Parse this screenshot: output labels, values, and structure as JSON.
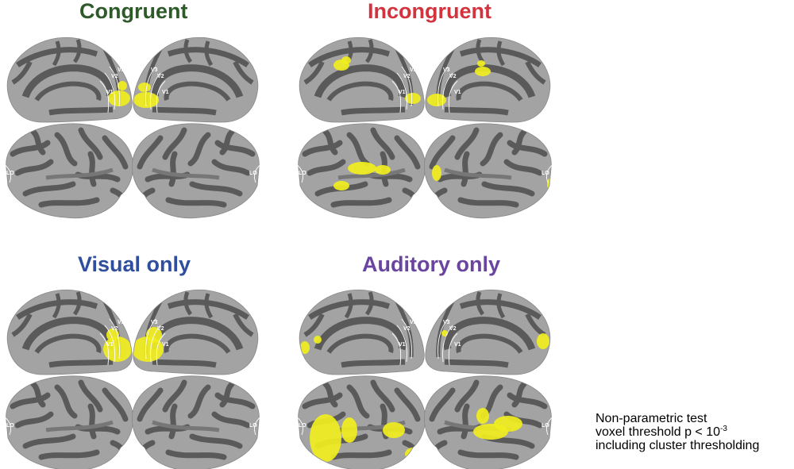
{
  "panels": [
    {
      "title": "Congruent",
      "color": "#2e5a2a"
    },
    {
      "title": "Incongruent",
      "color": "#d2333d"
    },
    {
      "title": "Visual only",
      "color": "#2f4f9e"
    },
    {
      "title": "Auditory only",
      "color": "#6a45a0"
    }
  ],
  "roi_labels": {
    "v1": "V1",
    "v2": "V2",
    "v3": "V3",
    "lo": "LO"
  },
  "note": {
    "line1": "Non-parametric test",
    "line2_prefix": "voxel threshold p < 10",
    "line2_exp": "-3",
    "line3": "including cluster thresholding"
  },
  "colors": {
    "cortex_light": "#a3a3a3",
    "cortex_dark": "#5a5a5a",
    "activation": "#f0ee1e",
    "roi_outline": "#ffffff"
  }
}
